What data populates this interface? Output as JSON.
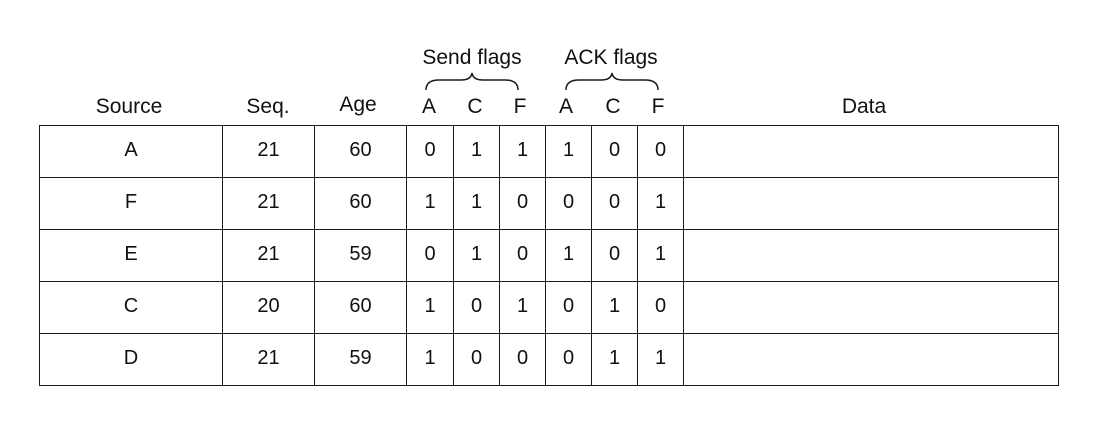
{
  "groups": {
    "send_flags": "Send flags",
    "ack_flags": "ACK flags"
  },
  "columns": [
    "Source",
    "Seq.",
    "Age",
    "A",
    "C",
    "F",
    "A",
    "C",
    "F",
    "Data"
  ],
  "rows": [
    [
      "A",
      "21",
      "60",
      "0",
      "1",
      "1",
      "1",
      "0",
      "0",
      ""
    ],
    [
      "F",
      "21",
      "60",
      "1",
      "1",
      "0",
      "0",
      "0",
      "1",
      ""
    ],
    [
      "E",
      "21",
      "59",
      "0",
      "1",
      "0",
      "1",
      "0",
      "1",
      ""
    ],
    [
      "C",
      "20",
      "60",
      "1",
      "0",
      "1",
      "0",
      "1",
      "0",
      ""
    ],
    [
      "D",
      "21",
      "59",
      "1",
      "0",
      "0",
      "0",
      "1",
      "1",
      ""
    ]
  ]
}
